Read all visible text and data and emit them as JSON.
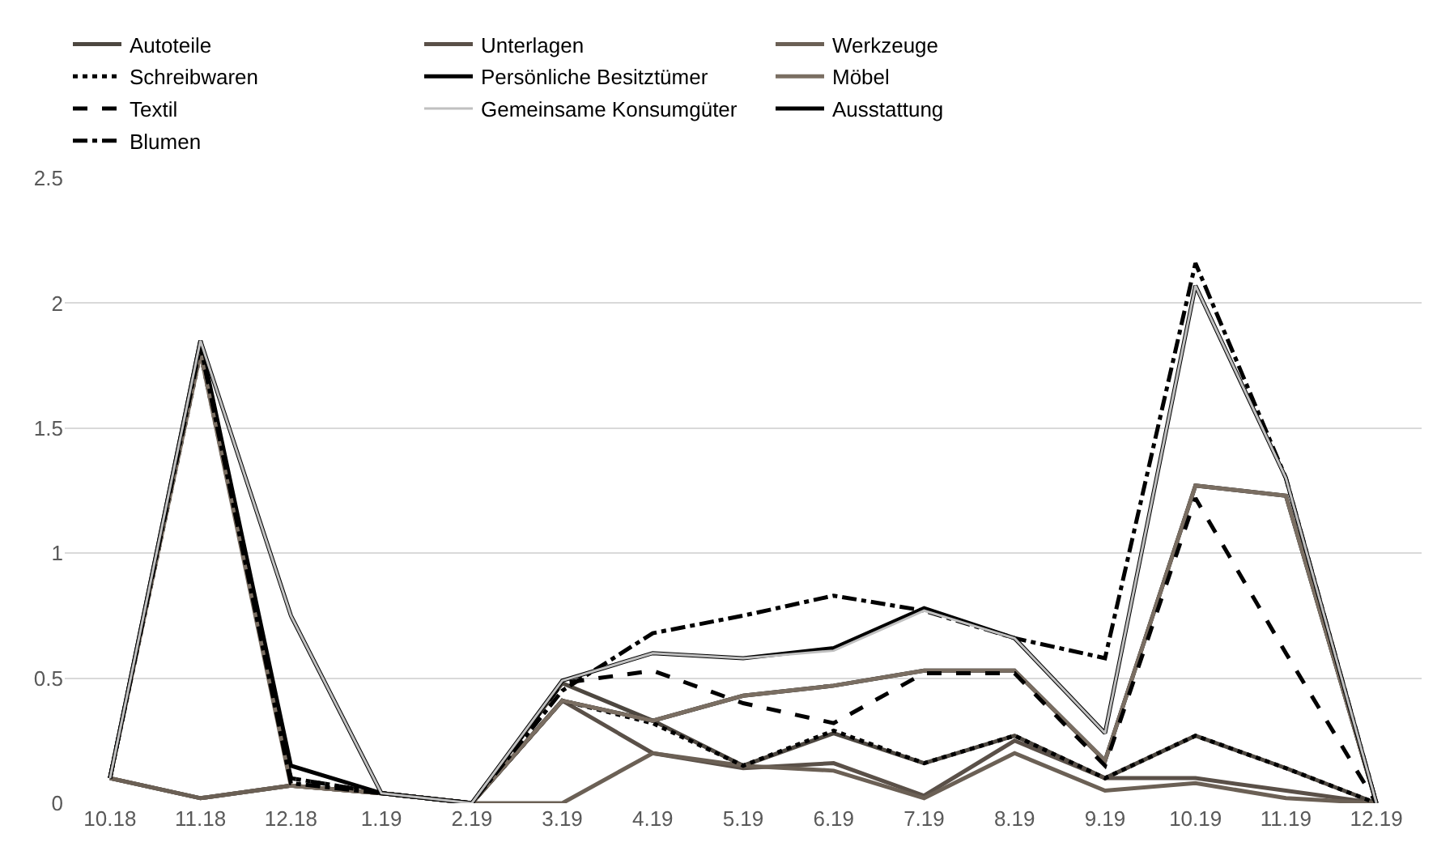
{
  "chart_data": {
    "type": "line",
    "categories": [
      "10.18",
      "11.18",
      "12.18",
      "1.19",
      "2.19",
      "3.19",
      "4.19",
      "5.19",
      "6.19",
      "7.19",
      "8.19",
      "9.19",
      "10.19",
      "11.19",
      "12.19"
    ],
    "ylim": [
      0,
      2.5
    ],
    "yticks": [
      0,
      0.5,
      1,
      1.5,
      2,
      2.5
    ],
    "grid": "y",
    "legend": "top",
    "marker": "none",
    "series": [
      {
        "name": "Autoteile",
        "color": "#4d4740",
        "line_style": "solid",
        "values": [
          0.1,
          0.02,
          0.07,
          0.04,
          0,
          0.48,
          0.33,
          0.15,
          0.28,
          0.16,
          0.27,
          0.1,
          0.27,
          0.14,
          0
        ]
      },
      {
        "name": "Unterlagen",
        "color": "#5a5048",
        "line_style": "solid",
        "values": [
          0.1,
          0.02,
          0.07,
          0.04,
          0,
          0.41,
          0.2,
          0.14,
          0.16,
          0.03,
          0.25,
          0.1,
          0.1,
          0.05,
          0
        ]
      },
      {
        "name": "Werkzeuge",
        "color": "#6b6055",
        "line_style": "solid",
        "values": [
          0.1,
          0.02,
          0.07,
          0.04,
          0,
          0,
          0.2,
          0.15,
          0.13,
          0.02,
          0.2,
          0.05,
          0.08,
          0.02,
          0
        ]
      },
      {
        "name": "Schreibwaren",
        "color": "#000000",
        "line_style": "dotted",
        "values": [
          0.1,
          1.8,
          0.1,
          0.04,
          0,
          0.41,
          0.32,
          0.15,
          0.29,
          0.16,
          0.27,
          0.1,
          0.27,
          0.14,
          0
        ]
      },
      {
        "name": "Persönliche Besitztümer",
        "color": "#000000",
        "line_style": "solid",
        "values": [
          0.1,
          1.85,
          0.15,
          0.04,
          0,
          0.41,
          0.33,
          0.43,
          0.47,
          0.53,
          0.53,
          0.17,
          1.27,
          1.23,
          0
        ]
      },
      {
        "name": "Möbel",
        "color": "#7a6e62",
        "line_style": "solid",
        "values": [
          0.1,
          1.8,
          0.07,
          0.04,
          0,
          0.41,
          0.33,
          0.43,
          0.47,
          0.53,
          0.53,
          0.17,
          1.27,
          1.23,
          0
        ]
      },
      {
        "name": "Textil",
        "color": "#000000",
        "line_style": "dashed",
        "values": [
          0.1,
          1.83,
          0.1,
          0.04,
          0,
          0.48,
          0.53,
          0.4,
          0.32,
          0.52,
          0.52,
          0.15,
          1.22,
          0.6,
          0
        ]
      },
      {
        "name": "Gemeinsame Konsumgüter",
        "color": "#c0c0c0",
        "line_style": "solid",
        "values": [
          0.1,
          1.85,
          0.75,
          0.04,
          0,
          0.49,
          0.6,
          0.58,
          0.61,
          0.77,
          0.66,
          0.28,
          2.07,
          1.3,
          0
        ]
      },
      {
        "name": "Ausstattung",
        "color": "#000000",
        "line_style": "solid",
        "values": [
          0.1,
          1.85,
          0.75,
          0.04,
          0,
          0.49,
          0.6,
          0.58,
          0.62,
          0.78,
          0.66,
          0.28,
          2.07,
          1.3,
          0
        ]
      },
      {
        "name": "Blumen",
        "color": "#000000",
        "line_style": "dashdot",
        "values": [
          0.1,
          1.83,
          0.08,
          0.04,
          0,
          0.45,
          0.68,
          0.75,
          0.83,
          0.77,
          0.66,
          0.58,
          2.16,
          1.3,
          0
        ]
      }
    ]
  }
}
